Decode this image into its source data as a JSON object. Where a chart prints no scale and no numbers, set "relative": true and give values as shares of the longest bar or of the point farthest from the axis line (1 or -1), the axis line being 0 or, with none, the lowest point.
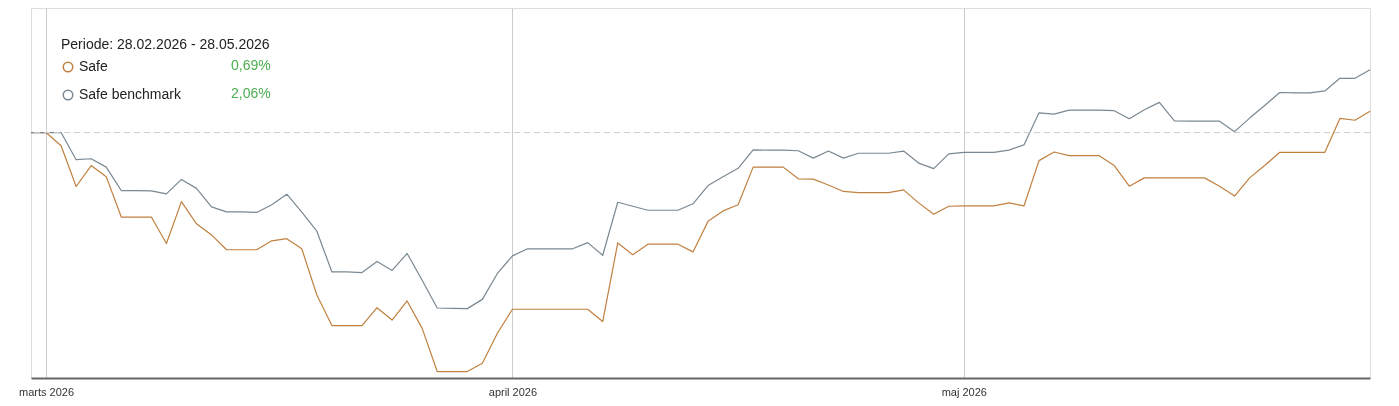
{
  "chart_data": {
    "type": "line",
    "legend_title": "Periode: 28.02.2026 - 28.05.2026",
    "legend": "top left",
    "grid": "x",
    "tick_labels": "x",
    "x": [
      "2026-02-28",
      "2026-03-01",
      "2026-03-02",
      "2026-03-03",
      "2026-03-04",
      "2026-03-05",
      "2026-03-06",
      "2026-03-07",
      "2026-03-08",
      "2026-03-09",
      "2026-03-10",
      "2026-03-11",
      "2026-03-12",
      "2026-03-13",
      "2026-03-14",
      "2026-03-15",
      "2026-03-16",
      "2026-03-17",
      "2026-03-18",
      "2026-03-19",
      "2026-03-20",
      "2026-03-21",
      "2026-03-22",
      "2026-03-23",
      "2026-03-24",
      "2026-03-25",
      "2026-03-26",
      "2026-03-27",
      "2026-03-28",
      "2026-03-29",
      "2026-03-30",
      "2026-03-31",
      "2026-04-01",
      "2026-04-02",
      "2026-04-03",
      "2026-04-04",
      "2026-04-05",
      "2026-04-06",
      "2026-04-07",
      "2026-04-08",
      "2026-04-09",
      "2026-04-10",
      "2026-04-11",
      "2026-04-12",
      "2026-04-13",
      "2026-04-14",
      "2026-04-15",
      "2026-04-16",
      "2026-04-17",
      "2026-04-18",
      "2026-04-19",
      "2026-04-20",
      "2026-04-21",
      "2026-04-22",
      "2026-04-23",
      "2026-04-24",
      "2026-04-25",
      "2026-04-26",
      "2026-04-27",
      "2026-04-28",
      "2026-04-29",
      "2026-04-30",
      "2026-05-01",
      "2026-05-02",
      "2026-05-03",
      "2026-05-04",
      "2026-05-05",
      "2026-05-06",
      "2026-05-07",
      "2026-05-08",
      "2026-05-09",
      "2026-05-10",
      "2026-05-11",
      "2026-05-12",
      "2026-05-13",
      "2026-05-14",
      "2026-05-15",
      "2026-05-16",
      "2026-05-17",
      "2026-05-18",
      "2026-05-19",
      "2026-05-20",
      "2026-05-21",
      "2026-05-22",
      "2026-05-23",
      "2026-05-24",
      "2026-05-25",
      "2026-05-26",
      "2026-05-27",
      "2026-05-28"
    ],
    "xlim": [
      "2026-02-28",
      "2026-05-28"
    ],
    "xticks": [
      {
        "value": "2026-03-01",
        "label": "marts 2026"
      },
      {
        "value": "2026-04-01",
        "label": "april 2026"
      },
      {
        "value": "2026-05-01",
        "label": "maj 2026"
      }
    ],
    "relative": true,
    "series": [
      {
        "name": "Safe",
        "color": "#c08040",
        "values": [
          0.796,
          0.796,
          0.753,
          0.621,
          0.689,
          0.653,
          0.522,
          0.522,
          0.522,
          0.436,
          0.572,
          0.5,
          0.464,
          0.416,
          0.416,
          0.416,
          0.445,
          0.452,
          0.419,
          0.269,
          0.17,
          0.17,
          0.17,
          0.228,
          0.188,
          0.25,
          0.161,
          0.021,
          0.021,
          0.021,
          0.048,
          0.145,
          0.223,
          0.223,
          0.223,
          0.223,
          0.223,
          0.223,
          0.183,
          0.438,
          0.4,
          0.434,
          0.434,
          0.434,
          0.409,
          0.508,
          0.542,
          0.562,
          0.684,
          0.684,
          0.684,
          0.646,
          0.645,
          0.626,
          0.605,
          0.601,
          0.601,
          0.601,
          0.61,
          0.568,
          0.531,
          0.557,
          0.558,
          0.558,
          0.558,
          0.568,
          0.558,
          0.705,
          0.733,
          0.721,
          0.721,
          0.721,
          0.689,
          0.622,
          0.649,
          0.649,
          0.649,
          0.649,
          0.649,
          0.622,
          0.59,
          0.649,
          0.689,
          0.732,
          0.732,
          0.732,
          0.732,
          0.842,
          0.836,
          0.865
        ]
      },
      {
        "name": "Safe benchmark",
        "color": "#7a8891",
        "values": [
          0.796,
          0.796,
          0.796,
          0.708,
          0.711,
          0.684,
          0.608,
          0.608,
          0.607,
          0.597,
          0.644,
          0.615,
          0.555,
          0.539,
          0.539,
          0.537,
          0.562,
          0.596,
          0.538,
          0.476,
          0.344,
          0.344,
          0.342,
          0.378,
          0.349,
          0.404,
          0.317,
          0.227,
          0.226,
          0.225,
          0.255,
          0.339,
          0.396,
          0.419,
          0.419,
          0.419,
          0.419,
          0.439,
          0.398,
          0.57,
          0.557,
          0.544,
          0.544,
          0.544,
          0.565,
          0.624,
          0.653,
          0.68,
          0.74,
          0.739,
          0.739,
          0.737,
          0.713,
          0.736,
          0.713,
          0.729,
          0.729,
          0.729,
          0.736,
          0.697,
          0.679,
          0.727,
          0.732,
          0.732,
          0.732,
          0.739,
          0.756,
          0.86,
          0.856,
          0.869,
          0.869,
          0.869,
          0.867,
          0.841,
          0.87,
          0.894,
          0.834,
          0.833,
          0.833,
          0.833,
          0.799,
          0.843,
          0.884,
          0.926,
          0.925,
          0.925,
          0.931,
          0.972,
          0.972,
          1
        ]
      }
    ],
    "ref_lines": [
      {
        "axis": "y",
        "value": 0.796,
        "color": "#cccccc",
        "line_style": "dashed"
      }
    ],
    "annotations": [
      "0,69%",
      "2,06%"
    ]
  }
}
